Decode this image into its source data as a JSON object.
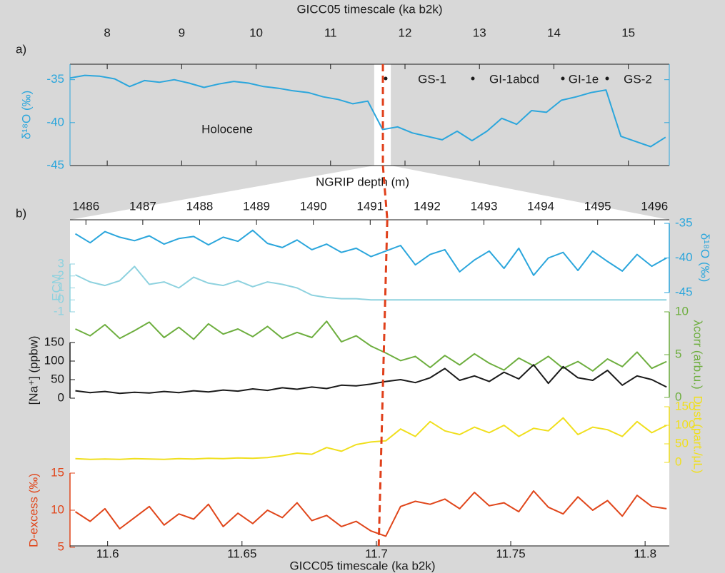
{
  "chart_data": [
    {
      "type": "line",
      "panel": "a)",
      "xlabel": "GICC05 timescale (ka b2k)",
      "xlim": [
        7.5,
        15.55
      ],
      "xticks": [
        8,
        9,
        10,
        11,
        12,
        13,
        14,
        15
      ],
      "ylabel": "δ¹⁸O (‰)",
      "ylim": [
        -45,
        -33.2
      ],
      "yticks": [
        -35,
        -40,
        -45
      ],
      "x": [
        7.5,
        7.7,
        7.9,
        8.1,
        8.3,
        8.5,
        8.7,
        8.9,
        9.1,
        9.3,
        9.5,
        9.7,
        9.9,
        10.1,
        10.3,
        10.5,
        10.7,
        10.9,
        11.1,
        11.3,
        11.5,
        11.7,
        11.9,
        12.1,
        12.3,
        12.5,
        12.7,
        12.9,
        13.1,
        13.3,
        13.5,
        13.7,
        13.9,
        14.1,
        14.3,
        14.5,
        14.7,
        14.9,
        15.1,
        15.3,
        15.5
      ],
      "series": [
        {
          "color": "#2ba6dc",
          "values": [
            -34.8,
            -34.5,
            -34.6,
            -34.9,
            -35.8,
            -35.1,
            -35.3,
            -35.0,
            -35.4,
            -35.9,
            -35.5,
            -35.2,
            -35.4,
            -35.8,
            -36.0,
            -36.3,
            -36.5,
            -37.0,
            -37.3,
            -37.8,
            -37.5,
            -40.8,
            -40.5,
            -41.2,
            -41.6,
            -42.0,
            -41.0,
            -42.1,
            -41.0,
            -39.5,
            -40.2,
            -38.6,
            -38.8,
            -37.4,
            -37.0,
            -36.5,
            -36.2,
            -41.6,
            -42.2,
            -42.8,
            -41.7
          ]
        }
      ],
      "annotations": [
        "Holocene",
        "GS-1",
        "GI-1abcd",
        "GI-1e",
        "GS-2"
      ],
      "event_x": 11.703
    },
    {
      "type": "line",
      "panel": "b)",
      "x2label": "NGRIP depth (m)",
      "x2lim": [
        1485.72,
        1496.26
      ],
      "x2ticks": [
        1486,
        1487,
        1488,
        1489,
        1490,
        1491,
        1492,
        1493,
        1494,
        1495,
        1496
      ],
      "xlabel": "GICC05 timescale (ka b2k)",
      "xlim": [
        11.586,
        11.809
      ],
      "xticks": [
        11.6,
        11.65,
        11.7,
        11.75,
        11.8
      ],
      "event_x": 11.703,
      "x": [
        11.588,
        11.5935,
        11.599,
        11.6045,
        11.61,
        11.6155,
        11.621,
        11.6265,
        11.632,
        11.6375,
        11.643,
        11.6485,
        11.654,
        11.6595,
        11.665,
        11.6705,
        11.676,
        11.6815,
        11.687,
        11.6925,
        11.698,
        11.7035,
        11.709,
        11.7145,
        11.72,
        11.7255,
        11.731,
        11.7365,
        11.742,
        11.7475,
        11.753,
        11.7585,
        11.764,
        11.7695,
        11.775,
        11.7805,
        11.786,
        11.7915,
        11.797,
        11.8025,
        11.808
      ],
      "series": [
        {
          "name": "δ¹⁸O (‰)",
          "color": "#2ba6dc",
          "side": "right",
          "ylim": [
            -45,
            -35
          ],
          "yticks": [
            -35,
            -40,
            -45
          ],
          "values": [
            -36.5,
            -37.8,
            -36.2,
            -37.0,
            -37.5,
            -36.8,
            -38.0,
            -37.2,
            -36.9,
            -38.1,
            -37.0,
            -37.6,
            -36.0,
            -37.9,
            -38.5,
            -37.4,
            -38.8,
            -38.0,
            -39.2,
            -38.6,
            -39.8,
            -39.0,
            -38.2,
            -41.0,
            -39.5,
            -38.8,
            -42.0,
            -40.3,
            -39.0,
            -41.5,
            -38.6,
            -42.5,
            -40.0,
            -39.2,
            -41.8,
            -39.0,
            -40.5,
            -41.9,
            -39.5,
            -41.2,
            -40.0
          ]
        },
        {
          "name": "ECM",
          "color": "#8ed2df",
          "side": "left",
          "ylim": [
            -1,
            3
          ],
          "yticks": [
            -1,
            0,
            1,
            2,
            3
          ],
          "values": [
            2.1,
            1.5,
            1.2,
            1.6,
            2.8,
            1.3,
            1.5,
            1.0,
            1.9,
            1.4,
            1.2,
            1.6,
            1.1,
            1.5,
            1.3,
            1.0,
            0.4,
            0.2,
            0.1,
            0.1,
            0.0,
            0.0,
            0,
            0,
            0,
            0,
            0,
            0,
            0,
            0,
            0,
            0,
            0,
            0,
            0,
            0,
            0,
            0,
            0,
            0,
            0
          ]
        },
        {
          "name": "λcorr (arb.u.)",
          "color": "#6dae3e",
          "side": "right",
          "ylim": [
            0,
            10
          ],
          "yticks": [
            0,
            5,
            10
          ],
          "values": [
            8.0,
            7.2,
            8.5,
            6.9,
            7.8,
            8.8,
            7.0,
            8.2,
            6.8,
            8.6,
            7.4,
            8.0,
            7.1,
            8.3,
            6.9,
            7.6,
            7.0,
            8.9,
            6.5,
            7.2,
            6.0,
            5.2,
            4.3,
            4.8,
            3.5,
            4.9,
            3.8,
            5.1,
            4.0,
            3.2,
            4.6,
            3.7,
            4.8,
            3.4,
            4.2,
            3.1,
            4.5,
            3.6,
            5.3,
            3.4,
            4.2
          ]
        },
        {
          "name": "[Na⁺] (ppbw)",
          "color": "#1a1a1a",
          "side": "left",
          "ylim": [
            0,
            150
          ],
          "yticks": [
            0,
            50,
            100,
            150
          ],
          "values": [
            20,
            15,
            18,
            13,
            16,
            14,
            18,
            15,
            20,
            17,
            22,
            19,
            25,
            21,
            28,
            24,
            30,
            26,
            35,
            33,
            38,
            45,
            50,
            42,
            55,
            80,
            48,
            60,
            45,
            70,
            52,
            90,
            40,
            85,
            55,
            48,
            75,
            35,
            60,
            50,
            30
          ]
        },
        {
          "name": "Dust (part./μL)",
          "color": "#f0df1e",
          "side": "right",
          "ylim": [
            0,
            150
          ],
          "yticks": [
            0,
            50,
            100,
            150
          ],
          "values": [
            10,
            8,
            9,
            8,
            10,
            9,
            8,
            10,
            9,
            11,
            10,
            12,
            11,
            13,
            18,
            25,
            22,
            40,
            30,
            48,
            55,
            58,
            90,
            70,
            110,
            85,
            75,
            95,
            80,
            100,
            70,
            92,
            85,
            120,
            75,
            95,
            88,
            70,
            110,
            80,
            100
          ]
        },
        {
          "name": "D-excess (‰)",
          "color": "#e0461b",
          "side": "left",
          "ylim": [
            5,
            15
          ],
          "yticks": [
            5,
            10,
            15
          ],
          "values": [
            9.8,
            8.5,
            10.2,
            7.5,
            9.0,
            10.5,
            8.0,
            9.5,
            8.8,
            10.8,
            7.8,
            9.6,
            8.2,
            10.0,
            9.0,
            11.0,
            8.6,
            9.3,
            7.8,
            8.5,
            7.2,
            6.5,
            10.5,
            11.2,
            10.8,
            11.5,
            10.2,
            12.4,
            10.6,
            11.0,
            9.8,
            12.6,
            10.4,
            9.5,
            11.8,
            10.0,
            11.3,
            9.2,
            12.0,
            10.5,
            10.2
          ]
        }
      ]
    }
  ]
}
